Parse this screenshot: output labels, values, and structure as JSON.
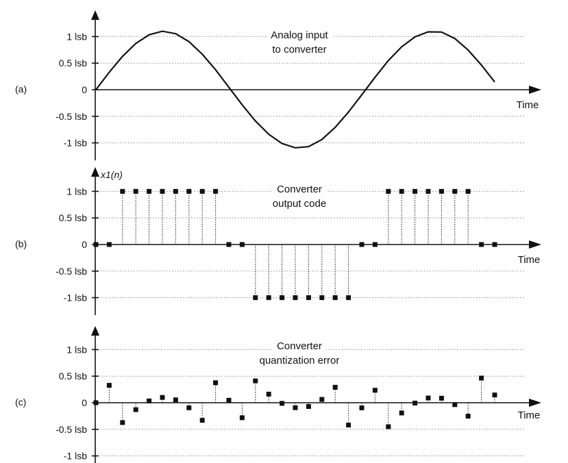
{
  "chart_data": [
    {
      "type": "line",
      "panel_label": "(a)",
      "annotation": [
        "Analog input",
        "to converter"
      ],
      "xlabel": "Time",
      "ylabel": "",
      "yticks": [
        "1 lsb",
        "0.5 lsb",
        "0",
        "-0.5 lsb",
        "-1 lsb"
      ],
      "ytick_values": [
        1,
        0.5,
        0,
        -0.5,
        -1
      ],
      "ylim": [
        -1.2,
        1.25
      ],
      "xlim": [
        0,
        31
      ],
      "series": [
        {
          "amplitude_lsb": 1.1,
          "x": [
            0,
            1,
            2,
            3,
            4,
            5,
            6,
            7,
            8,
            9,
            10,
            11,
            12,
            13,
            14,
            15,
            16,
            17,
            18,
            19,
            20,
            21,
            22,
            23,
            24,
            25,
            26,
            27,
            28,
            29,
            30
          ],
          "y": [
            0,
            0.328,
            0.627,
            0.87,
            1.034,
            1.1,
            1.054,
            0.905,
            0.669,
            0.376,
            0.047,
            -0.282,
            -0.589,
            -0.838,
            -1.012,
            -1.093,
            -1.071,
            -0.937,
            -0.709,
            -0.42,
            -0.096,
            0.235,
            0.549,
            0.807,
            0.993,
            1.089,
            1.085,
            0.964,
            0.747,
            0.464,
            0.146
          ]
        }
      ]
    },
    {
      "type": "stem",
      "panel_label": "(b)",
      "annotation": [
        "Converter",
        "output code"
      ],
      "xlabel": "Time",
      "ylabel": "x1(n)",
      "yticks": [
        "1 lsb",
        "0.5 lsb",
        "0",
        "-0.5 lsb",
        "-1 lsb"
      ],
      "ytick_values": [
        1,
        0.5,
        0,
        -0.5,
        -1
      ],
      "ylim": [
        -1.2,
        1.25
      ],
      "xlim": [
        0,
        31
      ],
      "series": [
        {
          "x": [
            0,
            1,
            2,
            3,
            4,
            5,
            6,
            7,
            8,
            9,
            10,
            11,
            12,
            13,
            14,
            15,
            16,
            17,
            18,
            19,
            20,
            21,
            22,
            23,
            24,
            25,
            26,
            27,
            28,
            29,
            30
          ],
          "y": [
            0,
            0,
            1,
            1,
            1,
            1,
            1,
            1,
            1,
            1,
            0,
            0,
            -1,
            -1,
            -1,
            -1,
            -1,
            -1,
            -1,
            -1,
            0,
            0,
            1,
            1,
            1,
            1,
            1,
            1,
            1,
            0,
            0
          ]
        }
      ]
    },
    {
      "type": "stem",
      "panel_label": "(c)",
      "annotation": [
        "Converter",
        "quantization error"
      ],
      "xlabel": "Time",
      "ylabel": "",
      "yticks": [
        "1 lsb",
        "0.5 lsb",
        "0",
        "-0.5 lsb",
        "-1 lsb"
      ],
      "ytick_values": [
        1,
        0.5,
        0,
        -0.5,
        -1
      ],
      "ylim": [
        -1.2,
        1.25
      ],
      "xlim": [
        0,
        31
      ],
      "series": [
        {
          "x": [
            0,
            1,
            2,
            3,
            4,
            5,
            6,
            7,
            8,
            9,
            10,
            11,
            12,
            13,
            14,
            15,
            16,
            17,
            18,
            19,
            20,
            21,
            22,
            23,
            24,
            25,
            26,
            27,
            28,
            29,
            30
          ],
          "y": [
            0,
            0.328,
            -0.373,
            -0.13,
            0.034,
            0.1,
            0.054,
            -0.095,
            -0.331,
            0.376,
            0.047,
            -0.282,
            0.411,
            0.162,
            -0.012,
            -0.093,
            -0.071,
            0.063,
            0.291,
            -0.42,
            -0.096,
            0.235,
            -0.451,
            -0.193,
            -0.007,
            0.089,
            0.085,
            -0.036,
            -0.253,
            0.464,
            0.146
          ]
        }
      ]
    }
  ]
}
